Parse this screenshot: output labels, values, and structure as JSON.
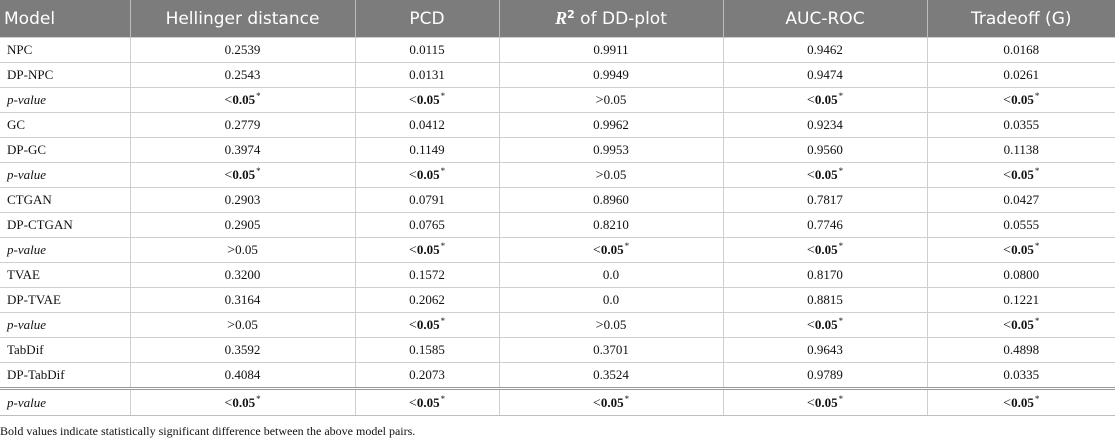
{
  "headers": {
    "model": "Model",
    "hellinger": "Hellinger distance",
    "pcd": "PCD",
    "r2_symbol": "R",
    "r2_sup": "2",
    "r2_rest": " of DD-plot",
    "auc": "AUC-ROC",
    "tradeoff": "Tradeoff (G)"
  },
  "rows": [
    {
      "model": "NPC",
      "hellinger": "0.2539",
      "pcd": "0.0115",
      "r2": "0.9911",
      "auc": "0.9462",
      "tradeoff": "0.0168"
    },
    {
      "model": "DP-NPC",
      "hellinger": "0.2543",
      "pcd": "0.0131",
      "r2": "0.9949",
      "auc": "0.9474",
      "tradeoff": "0.0261"
    },
    {
      "model": "GC",
      "hellinger": "0.2779",
      "pcd": "0.0412",
      "r2": "0.9962",
      "auc": "0.9234",
      "tradeoff": "0.0355"
    },
    {
      "model": "DP-GC",
      "hellinger": "0.3974",
      "pcd": "0.1149",
      "r2": "0.9953",
      "auc": "0.9560",
      "tradeoff": "0.1138"
    },
    {
      "model": "CTGAN",
      "hellinger": "0.2903",
      "pcd": "0.0791",
      "r2": "0.8960",
      "auc": "0.7817",
      "tradeoff": "0.0427"
    },
    {
      "model": "DP-CTGAN",
      "hellinger": "0.2905",
      "pcd": "0.0765",
      "r2": "0.8210",
      "auc": "0.7746",
      "tradeoff": "0.0555"
    },
    {
      "model": "TVAE",
      "hellinger": "0.3200",
      "pcd": "0.1572",
      "r2": "0.0",
      "auc": "0.8170",
      "tradeoff": "0.0800"
    },
    {
      "model": "DP-TVAE",
      "hellinger": "0.3164",
      "pcd": "0.2062",
      "r2": "0.0",
      "auc": "0.8815",
      "tradeoff": "0.1221"
    },
    {
      "model": "TabDif",
      "hellinger": "0.3592",
      "pcd": "0.1585",
      "r2": "0.3701",
      "auc": "0.9643",
      "tradeoff": "0.4898"
    },
    {
      "model": "DP-TabDif",
      "hellinger": "0.4084",
      "pcd": "0.2073",
      "r2": "0.3524",
      "auc": "0.9789",
      "tradeoff": "0.0335"
    }
  ],
  "pvalue_label": "p-value",
  "pvalues": [
    {
      "hellinger": {
        "op": "<",
        "val": "0.05",
        "sig": "*"
      },
      "pcd": {
        "op": "<",
        "val": "0.05",
        "sig": "*"
      },
      "r2": {
        "op": ">",
        "val": "0.05",
        "sig": ""
      },
      "auc": {
        "op": "<",
        "val": "0.05",
        "sig": "*"
      },
      "tradeoff": {
        "op": "<",
        "val": "0.05",
        "sig": "*"
      }
    },
    {
      "hellinger": {
        "op": "<",
        "val": "0.05",
        "sig": "*"
      },
      "pcd": {
        "op": "<",
        "val": "0.05",
        "sig": "*"
      },
      "r2": {
        "op": ">",
        "val": "0.05",
        "sig": ""
      },
      "auc": {
        "op": "<",
        "val": "0.05",
        "sig": "*"
      },
      "tradeoff": {
        "op": "<",
        "val": "0.05",
        "sig": "*"
      }
    },
    {
      "hellinger": {
        "op": ">",
        "val": "0.05",
        "sig": ""
      },
      "pcd": {
        "op": "<",
        "val": "0.05",
        "sig": "*"
      },
      "r2": {
        "op": "<",
        "val": "0.05",
        "sig": "*"
      },
      "auc": {
        "op": "<",
        "val": "0.05",
        "sig": "*"
      },
      "tradeoff": {
        "op": "<",
        "val": "0.05",
        "sig": "*"
      }
    },
    {
      "hellinger": {
        "op": ">",
        "val": "0.05",
        "sig": ""
      },
      "pcd": {
        "op": "<",
        "val": "0.05",
        "sig": "*"
      },
      "r2": {
        "op": ">",
        "val": "0.05",
        "sig": ""
      },
      "auc": {
        "op": "<",
        "val": "0.05",
        "sig": "*"
      },
      "tradeoff": {
        "op": "<",
        "val": "0.05",
        "sig": "*"
      }
    },
    {
      "hellinger": {
        "op": "<",
        "val": "0.05",
        "sig": "*"
      },
      "pcd": {
        "op": "<",
        "val": "0.05",
        "sig": "*"
      },
      "r2": {
        "op": "<",
        "val": "0.05",
        "sig": "*"
      },
      "auc": {
        "op": "<",
        "val": "0.05",
        "sig": "*"
      },
      "tradeoff": {
        "op": "<",
        "val": "0.05",
        "sig": "*"
      }
    }
  ],
  "footnote": "Bold values indicate statistically significant difference between the above model pairs.",
  "colors": {
    "header_bg": "#7c7c7c",
    "header_text": "#ffffff",
    "grid": "#cfcfcf"
  }
}
